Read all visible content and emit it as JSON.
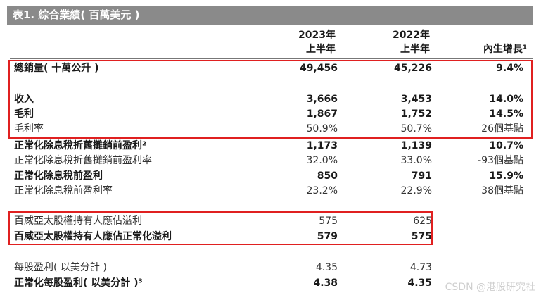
{
  "title": "表1. 綜合業績( 百萬美元 )",
  "header": {
    "col1_line1": "2023年",
    "col1_line2": "上半年",
    "col2_line1": "2022年",
    "col2_line2": "上半年",
    "col3": "內生增長¹"
  },
  "rows": [
    {
      "label": "總銷量( 十萬公升 )",
      "c1": "49,456",
      "c2": "45,226",
      "c3": "9.4%"
    },
    {
      "label": "收入",
      "c1": "3,666",
      "c2": "3,453",
      "c3": "14.0%"
    },
    {
      "label": "毛利",
      "c1": "1,867",
      "c2": "1,752",
      "c3": "14.5%"
    },
    {
      "label": "毛利率",
      "c1": "50.9%",
      "c2": "50.7%",
      "c3": "26個基點"
    },
    {
      "label": "正常化除息稅折舊攤銷前盈利²",
      "c1": "1,173",
      "c2": "1,139",
      "c3": "10.7%"
    },
    {
      "label": "正常化除息稅折舊攤銷前盈利率",
      "c1": "32.0%",
      "c2": "33.0%",
      "c3": "-93個基點"
    },
    {
      "label": "正常化除息稅前盈利",
      "c1": "850",
      "c2": "791",
      "c3": "15.9%"
    },
    {
      "label": "正常化除息稅前盈利率",
      "c1": "23.2%",
      "c2": "22.9%",
      "c3": "38個基點"
    },
    {
      "label": "百威亞太股權持有人應佔溢利",
      "c1": "575",
      "c2": "625",
      "c3": ""
    },
    {
      "label": "百威亞太股權持有人應佔正常化溢利",
      "c1": "579",
      "c2": "575",
      "c3": ""
    },
    {
      "label": "每股盈利( 以美分計 )",
      "c1": "4.35",
      "c2": "4.73",
      "c3": ""
    },
    {
      "label": "正常化每股盈利( 以美分計 )³",
      "c1": "4.38",
      "c2": "4.35",
      "c3": ""
    }
  ],
  "watermark": "CSDN @港股研究社"
}
